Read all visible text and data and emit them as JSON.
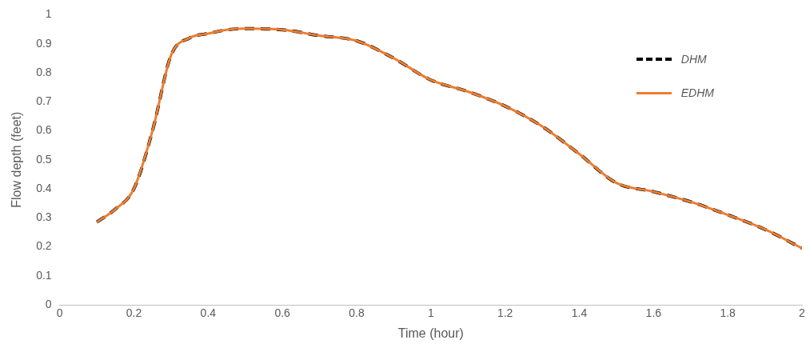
{
  "chart_data": {
    "type": "line",
    "xlabel": "Time (hour)",
    "ylabel": "Flow depth (feet)",
    "x": [
      0.1,
      0.15,
      0.2,
      0.25,
      0.3,
      0.35,
      0.4,
      0.45,
      0.5,
      0.6,
      0.7,
      0.8,
      0.9,
      1.0,
      1.1,
      1.2,
      1.3,
      1.4,
      1.5,
      1.6,
      1.7,
      1.8,
      1.9,
      2.0
    ],
    "series": [
      {
        "name": "DHM",
        "color": "#000000",
        "line_style": "dashed",
        "values": [
          0.285,
          0.33,
          0.4,
          0.6,
          0.86,
          0.92,
          0.935,
          0.948,
          0.952,
          0.948,
          0.928,
          0.91,
          0.85,
          0.775,
          0.735,
          0.685,
          0.615,
          0.52,
          0.42,
          0.39,
          0.355,
          0.31,
          0.26,
          0.195
        ]
      },
      {
        "name": "EDHM",
        "color": "#ed7d31",
        "line_style": "solid",
        "values": [
          0.285,
          0.33,
          0.4,
          0.6,
          0.86,
          0.92,
          0.935,
          0.948,
          0.952,
          0.948,
          0.928,
          0.91,
          0.85,
          0.775,
          0.735,
          0.685,
          0.615,
          0.52,
          0.42,
          0.39,
          0.355,
          0.31,
          0.26,
          0.195
        ]
      }
    ],
    "xlim": [
      0,
      2
    ],
    "xticks": [
      0,
      0.2,
      0.4,
      0.6,
      0.8,
      1,
      1.2,
      1.4,
      1.6,
      1.8,
      2
    ],
    "ylim": [
      0,
      1
    ],
    "yticks": [
      0,
      0.1,
      0.2,
      0.3,
      0.4,
      0.5,
      0.6,
      0.7,
      0.8,
      0.9,
      1
    ],
    "grid": false,
    "legend": "top right",
    "marker": "none"
  }
}
